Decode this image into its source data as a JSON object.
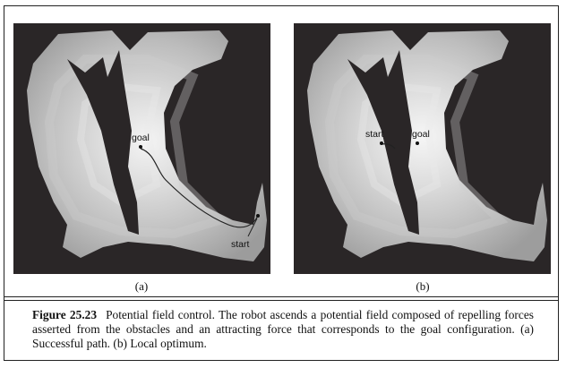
{
  "figure": {
    "panels": [
      {
        "id": "a",
        "sublabel": "(a)",
        "labels": {
          "goal": "goal",
          "start": "start"
        }
      },
      {
        "id": "b",
        "sublabel": "(b)",
        "labels": {
          "goal": "goal",
          "start": "start"
        }
      }
    ],
    "caption": {
      "figure_number": "Figure 25.23",
      "text": "Potential field control. The robot ascends a potential field composed of repelling forces asserted from the obstacles and an attracting force that corresponds to the goal configuration. (a) Successful path. (b) Local optimum."
    }
  }
}
